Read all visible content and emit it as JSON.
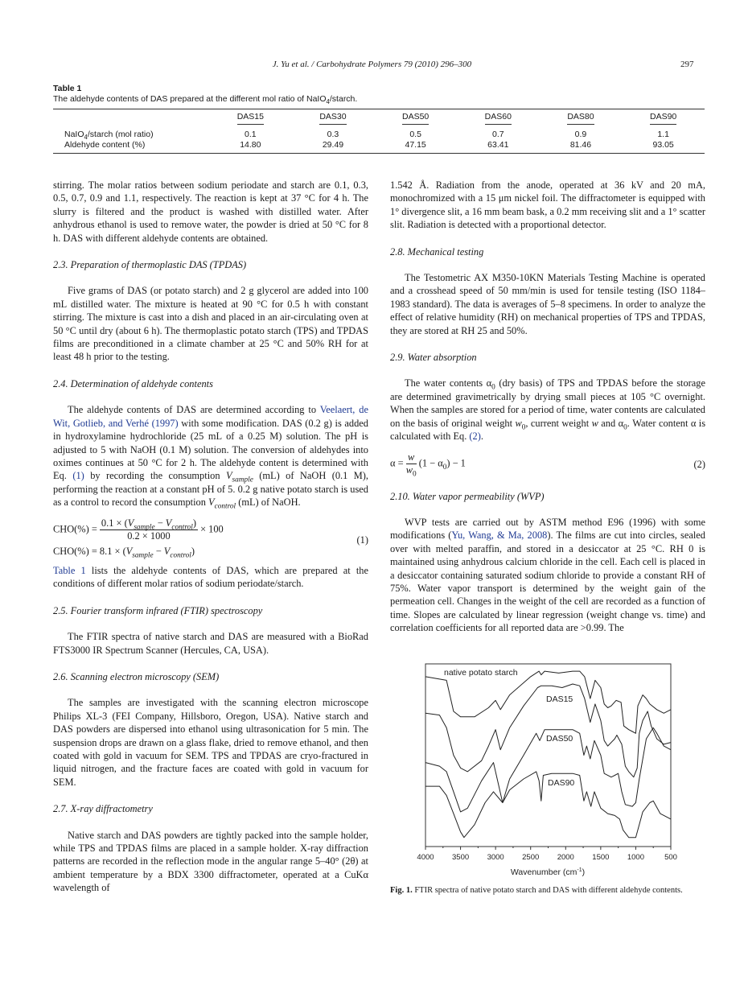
{
  "header": {
    "running_head": "J. Yu et al. / Carbohydrate Polymers 79 (2010) 296–300",
    "page_number": "297"
  },
  "table1": {
    "label": "Table 1",
    "caption_pre": "The aldehyde contents of DAS prepared at the different mol ratio of NaIO",
    "caption_sub": "4",
    "caption_post": "/starch.",
    "columns": [
      "DAS15",
      "DAS30",
      "DAS50",
      "DAS60",
      "DAS80",
      "DAS90"
    ],
    "rows": [
      {
        "label_pre": "NaIO",
        "label_sub": "4",
        "label_post": "/starch (mol ratio)",
        "values": [
          "0.1",
          "0.3",
          "0.5",
          "0.7",
          "0.9",
          "1.1"
        ]
      },
      {
        "label_pre": "Aldehyde content (%)",
        "label_sub": "",
        "label_post": "",
        "values": [
          "14.80",
          "29.49",
          "47.15",
          "63.41",
          "81.46",
          "93.05"
        ]
      }
    ]
  },
  "left": {
    "p1": "stirring. The molar ratios between sodium periodate and starch are 0.1, 0.3, 0.5, 0.7, 0.9 and 1.1, respectively. The reaction is kept at 37 °C for 4 h. The slurry is filtered and the product is washed with distilled water. After anhydrous ethanol is used to remove water, the powder is dried at 50 °C for 8 h. DAS with different aldehyde contents are obtained.",
    "h23": "2.3. Preparation of thermoplastic DAS (TPDAS)",
    "p23": "Five grams of DAS (or potato starch) and 2 g glycerol are added into 100 mL distilled water. The mixture is heated at 90 °C for 0.5 h with constant stirring. The mixture is cast into a dish and placed in an air-circulating oven at 50 °C until dry (about 6 h). The thermoplastic potato starch (TPS) and TPDAS films are preconditioned in a climate chamber at 25 °C and 50% RH for at least 48 h prior to the testing.",
    "h24": "2.4. Determination of aldehyde contents",
    "p24": {
      "a": "The aldehyde contents of DAS are determined according to ",
      "ref": "Veelaert, de Wit, Gotlieb, and Verhé (1997)",
      "b": " with some modification. DAS (0.2 g) is added in hydroxylamine hydrochloride (25 mL of a 0.25 M) solution. The pH is adjusted to 5 with NaOH (0.1 M) solution. The conversion of aldehydes into oximes continues at 50 °C for 2 h. The aldehyde content is determined with Eq. ",
      "eqref": "(1)",
      "c": " by recording the consumption ",
      "v1": "V",
      "v1sub": "sample",
      "d": " (mL) of NaOH (0.1 M), performing the reaction at a constant pH of 5. 0.2 g native potato starch is used as a control to record the consumption ",
      "v2": "V",
      "v2sub": "control",
      "e": " (mL) of NaOH."
    },
    "eq1": {
      "lhs": "CHO(%) = ",
      "num_pre": "0.1 × (",
      "num_v": "V",
      "sub_sample": "sample",
      "minus": " − ",
      "sub_control": "control",
      "close": ")",
      "den": "0.2 × 1000",
      "times": " × 100",
      "line2_pre": "CHO(%) = 8.1 × (",
      "number": "(1)"
    },
    "p_table": {
      "ref": "Table 1",
      "rest": " lists the aldehyde contents of DAS, which are prepared at the conditions of different molar ratios of sodium periodate/starch."
    },
    "h25": "2.5. Fourier transform infrared (FTIR) spectroscopy",
    "p25": "The FTIR spectra of native starch and DAS are measured with a BioRad FTS3000 IR Spectrum Scanner (Hercules, CA, USA).",
    "h26": "2.6. Scanning electron microscopy (SEM)",
    "p26": "The samples are investigated with the scanning electron microscope Philips XL-3 (FEI Company, Hillsboro, Oregon, USA). Native starch and DAS powders are dispersed into ethanol using ultrasonication for 5 min. The suspension drops are drawn on a glass flake, dried to remove ethanol, and then coated with gold in vacuum for SEM. TPS and TPDAS are cryo-fractured in liquid nitrogen, and the fracture faces are coated with gold in vacuum for SEM.",
    "h27": "2.7. X-ray diffractometry",
    "p27": "Native starch and DAS powders are tightly packed into the sample holder, while TPS and TPDAS films are placed in a sample holder. X-ray diffraction patterns are recorded in the reflection mode in the angular range 5–40° (2θ) at ambient temperature by a BDX 3300 diffractometer, operated at a CuKα wavelength of"
  },
  "right": {
    "p1": "1.542 Å. Radiation from the anode, operated at 36 kV and 20 mA, monochromized with a 15 μm nickel foil. The diffractometer is equipped with 1° divergence slit, a 16 mm beam bask, a 0.2 mm receiving slit and a 1° scatter slit. Radiation is detected with a proportional detector.",
    "h28": "2.8. Mechanical testing",
    "p28": "The Testometric AX M350-10KN Materials Testing Machine is operated and a crosshead speed of 50 mm/min is used for tensile testing (ISO 1184–1983 standard). The data is averages of 5–8 specimens. In order to analyze the effect of relative humidity (RH) on mechanical properties of TPS and TPDAS, they are stored at RH 25 and 50%.",
    "h29": "2.9. Water absorption",
    "p29": {
      "a": "The water contents α",
      "sub0": "0",
      "b": " (dry basis) of TPS and TPDAS before the storage are determined gravimetrically by drying small pieces at 105 °C overnight. When the samples are stored for a period of time, water contents are calculated on the basis of original weight ",
      "w": "w",
      "c": ", current weight ",
      "d": " and α",
      "e": ". Water content α is calculated with Eq. ",
      "eqref": "(2)",
      "f": "."
    },
    "eq2": {
      "lhs": "α = ",
      "num": "w",
      "den": "w",
      "den_sub": "0",
      "rest_pre": "(1 − α",
      "rest_post": ") − 1",
      "number": "(2)"
    },
    "h210": "2.10. Water vapor permeability (WVP)",
    "p210": {
      "a": "WVP tests are carried out by ASTM method E96 (1996) with some modifications (",
      "ref": "Yu, Wang, & Ma, 2008",
      "b": "). The films are cut into circles, sealed over with melted paraffin, and stored in a desiccator at 25 °C. RH 0 is maintained using anhydrous calcium chloride in the cell. Each cell is placed in a desiccator containing saturated sodium chloride to provide a constant RH of 75%. Water vapor transport is determined by the weight gain of the permeation cell. Changes in the weight of the cell are recorded as a function of time. Slopes are calculated by linear regression (weight change vs. time) and correlation coefficients for all reported data are >0.99. The"
    }
  },
  "figure1": {
    "label": "Fig. 1.",
    "caption": " FTIR spectra of native potato starch and DAS with different aldehyde contents."
  },
  "chart_data": {
    "type": "line",
    "title": "",
    "xlabel": "Wavenumber (cm-1)",
    "xlabel_base": "Wavenumber (cm",
    "xlabel_sup": "-1",
    "xlabel_close": ")",
    "ylabel": "",
    "xlim": [
      4000,
      500
    ],
    "x_reversed": true,
    "ylim": [
      0,
      100
    ],
    "y_units": "relative (no y-axis ticks shown)",
    "xticks": [
      "4000",
      "3500",
      "3000",
      "2500",
      "2000",
      "1500",
      "1000",
      "500"
    ],
    "grid": false,
    "legend": "none (curves labelled inline)",
    "line_color": "#222222",
    "series": [
      {
        "name": "native potato starch",
        "points": [
          [
            4000,
            93
          ],
          [
            3700,
            91
          ],
          [
            3600,
            74
          ],
          [
            3500,
            71
          ],
          [
            3300,
            71
          ],
          [
            3100,
            76
          ],
          [
            3000,
            80
          ],
          [
            2930,
            75
          ],
          [
            2800,
            83
          ],
          [
            2500,
            93
          ],
          [
            2380,
            96
          ],
          [
            2350,
            94
          ],
          [
            2300,
            96
          ],
          [
            2100,
            95
          ],
          [
            1900,
            96
          ],
          [
            1800,
            96
          ],
          [
            1730,
            93
          ],
          [
            1650,
            81
          ],
          [
            1580,
            91
          ],
          [
            1500,
            87
          ],
          [
            1450,
            78
          ],
          [
            1400,
            76
          ],
          [
            1350,
            77
          ],
          [
            1280,
            80
          ],
          [
            1210,
            79
          ],
          [
            1170,
            66
          ],
          [
            1100,
            64
          ],
          [
            1050,
            63
          ],
          [
            1000,
            62
          ],
          [
            970,
            77
          ],
          [
            900,
            83
          ],
          [
            850,
            81
          ],
          [
            800,
            78
          ],
          [
            700,
            75
          ],
          [
            600,
            73
          ],
          [
            500,
            75
          ]
        ]
      },
      {
        "name": "DAS15",
        "points": [
          [
            4000,
            73
          ],
          [
            3800,
            72
          ],
          [
            3700,
            65
          ],
          [
            3600,
            50
          ],
          [
            3500,
            43
          ],
          [
            3400,
            41
          ],
          [
            3200,
            47
          ],
          [
            3100,
            55
          ],
          [
            3000,
            64
          ],
          [
            2930,
            53
          ],
          [
            2800,
            65
          ],
          [
            2600,
            77
          ],
          [
            2400,
            87
          ],
          [
            2350,
            88
          ],
          [
            2200,
            88
          ],
          [
            2050,
            87
          ],
          [
            1900,
            89
          ],
          [
            1800,
            88
          ],
          [
            1730,
            81
          ],
          [
            1650,
            68
          ],
          [
            1580,
            78
          ],
          [
            1500,
            69
          ],
          [
            1450,
            58
          ],
          [
            1400,
            55
          ],
          [
            1300,
            59
          ],
          [
            1270,
            61
          ],
          [
            1200,
            56
          ],
          [
            1150,
            44
          ],
          [
            1100,
            41
          ],
          [
            1030,
            38
          ],
          [
            980,
            43
          ],
          [
            950,
            62
          ],
          [
            900,
            69
          ],
          [
            830,
            74
          ],
          [
            780,
            66
          ],
          [
            700,
            59
          ],
          [
            600,
            56
          ],
          [
            500,
            57
          ]
        ]
      },
      {
        "name": "DAS50",
        "points": [
          [
            4000,
            46
          ],
          [
            3800,
            44
          ],
          [
            3700,
            41
          ],
          [
            3600,
            30
          ],
          [
            3500,
            19
          ],
          [
            3400,
            21
          ],
          [
            3200,
            36
          ],
          [
            3030,
            46
          ],
          [
            2900,
            24
          ],
          [
            2800,
            37
          ],
          [
            2600,
            50
          ],
          [
            2420,
            62
          ],
          [
            2370,
            58
          ],
          [
            2300,
            64
          ],
          [
            2100,
            64
          ],
          [
            1900,
            64
          ],
          [
            1800,
            62
          ],
          [
            1740,
            50
          ],
          [
            1700,
            55
          ],
          [
            1650,
            48
          ],
          [
            1590,
            58
          ],
          [
            1500,
            50
          ],
          [
            1450,
            40
          ],
          [
            1350,
            38
          ],
          [
            1300,
            39
          ],
          [
            1250,
            40
          ],
          [
            1200,
            30
          ],
          [
            1150,
            23
          ],
          [
            1050,
            22
          ],
          [
            1000,
            24
          ],
          [
            950,
            37
          ],
          [
            850,
            59
          ],
          [
            750,
            65
          ],
          [
            700,
            62
          ],
          [
            600,
            55
          ],
          [
            500,
            53
          ]
        ]
      },
      {
        "name": "DAS90",
        "points": [
          [
            4000,
            33
          ],
          [
            3800,
            33
          ],
          [
            3700,
            28
          ],
          [
            3600,
            18
          ],
          [
            3500,
            8
          ],
          [
            3450,
            5
          ],
          [
            3300,
            12
          ],
          [
            3150,
            24
          ],
          [
            3030,
            30
          ],
          [
            2900,
            24
          ],
          [
            2800,
            31
          ],
          [
            2600,
            37
          ],
          [
            2420,
            41
          ],
          [
            2380,
            36
          ],
          [
            2350,
            25
          ],
          [
            2320,
            39
          ],
          [
            2200,
            40
          ],
          [
            1900,
            40
          ],
          [
            1800,
            39
          ],
          [
            1740,
            25
          ],
          [
            1700,
            30
          ],
          [
            1640,
            22
          ],
          [
            1590,
            30
          ],
          [
            1500,
            21
          ],
          [
            1400,
            18
          ],
          [
            1300,
            17
          ],
          [
            1230,
            15
          ],
          [
            1180,
            9
          ],
          [
            1100,
            5
          ],
          [
            1000,
            5
          ],
          [
            950,
            12
          ],
          [
            900,
            19
          ],
          [
            800,
            24
          ],
          [
            750,
            25
          ],
          [
            650,
            18
          ],
          [
            500,
            15
          ]
        ]
      }
    ]
  }
}
